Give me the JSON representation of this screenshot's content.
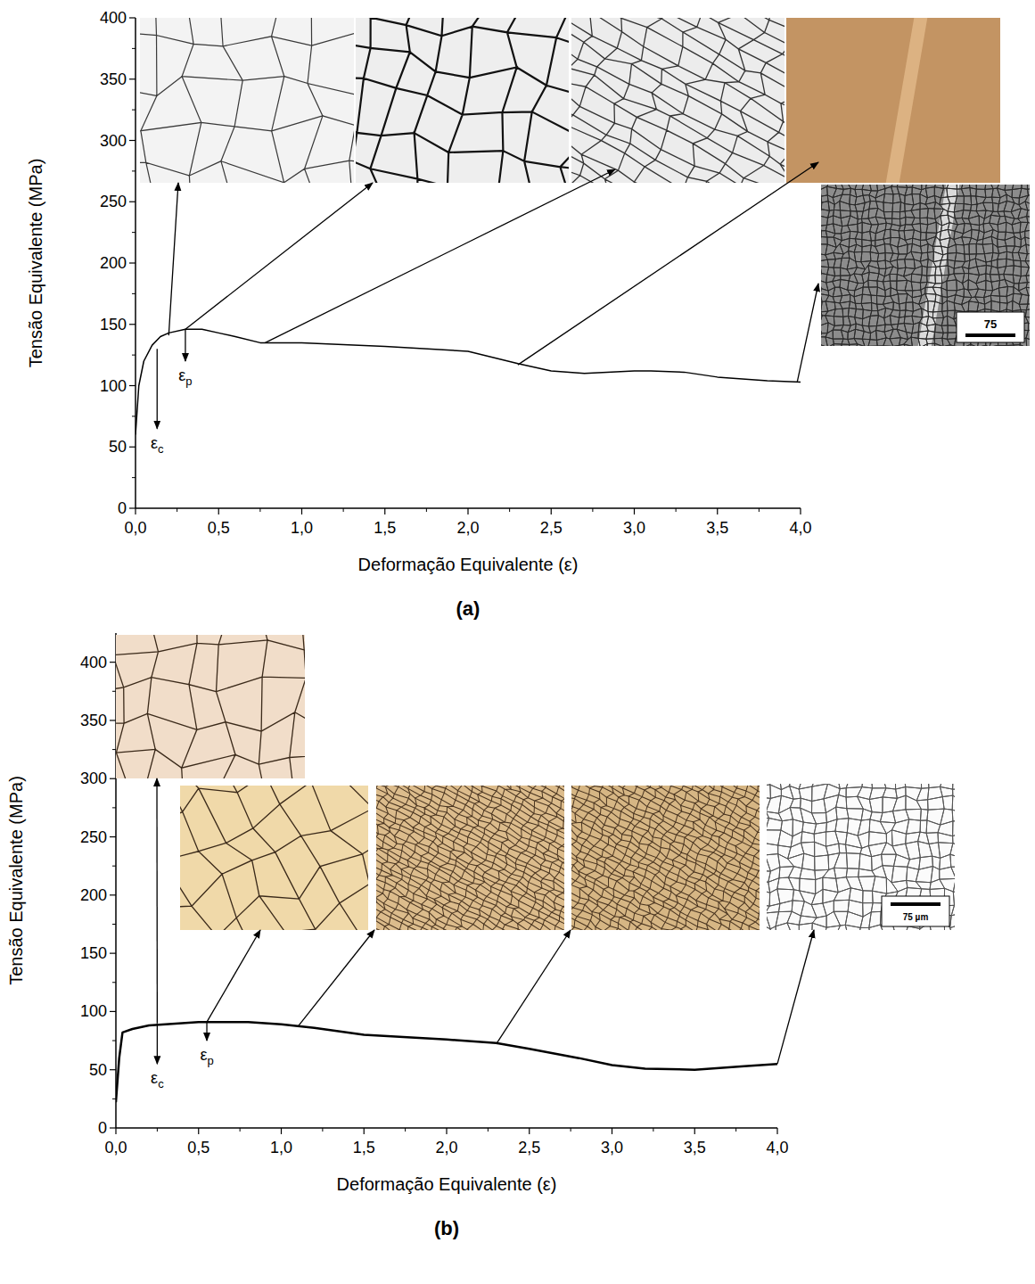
{
  "chart_data": [
    {
      "type": "line",
      "panel": "(a)",
      "x_label": "Deformação Equivalente (ε)",
      "y_label": "Tensão Equivalente (MPa)",
      "xlim": [
        0,
        4
      ],
      "ylim": [
        0,
        400
      ],
      "xticks": [
        {
          "value": 0,
          "label": "0,0"
        },
        {
          "value": 0.5,
          "label": "0,5"
        },
        {
          "value": 1,
          "label": "1,0"
        },
        {
          "value": 1.5,
          "label": "1,5"
        },
        {
          "value": 2,
          "label": "2,0"
        },
        {
          "value": 2.5,
          "label": "2,5"
        },
        {
          "value": 3,
          "label": "3,0"
        },
        {
          "value": 3.5,
          "label": "3,5"
        },
        {
          "value": 4,
          "label": "4,0"
        }
      ],
      "yticks": [
        0,
        50,
        100,
        150,
        200,
        250,
        300,
        350,
        400
      ],
      "color": "#000000",
      "x": [
        0,
        0.02,
        0.05,
        0.1,
        0.15,
        0.2,
        0.3,
        0.4,
        0.5,
        0.6,
        0.75,
        0.9,
        1.0,
        1.5,
        2.0,
        2.3,
        2.5,
        2.7,
        3.0,
        3.1,
        3.3,
        3.5,
        3.8,
        4.0
      ],
      "values": [
        60,
        100,
        120,
        133,
        140,
        143,
        146,
        146,
        143,
        140,
        135,
        135,
        135,
        132,
        128,
        118,
        112,
        110,
        112,
        112,
        111,
        107,
        104,
        103
      ],
      "annotations": [
        {
          "label": "ε",
          "subscript": "c",
          "x": 0.13,
          "y_start": 130,
          "y_end": 65
        },
        {
          "label": "ε",
          "subscript": "p",
          "x": 0.3,
          "y_start": 146,
          "y_end": 120
        }
      ],
      "insets": [
        {
          "x": 0.2,
          "y": 141
        },
        {
          "x": 0.3,
          "y": 146
        },
        {
          "x": 0.78,
          "y": 135
        },
        {
          "x": 2.3,
          "y": 117
        },
        {
          "x": 3.98,
          "y": 103,
          "scale_bar": "75"
        }
      ]
    },
    {
      "type": "line",
      "panel": "(b)",
      "x_label": "Deformação Equivalente (ε)",
      "y_label": "Tensão Equivalente (MPa)",
      "xlim": [
        0,
        4
      ],
      "ylim": [
        0,
        425
      ],
      "xticks": [
        {
          "value": 0,
          "label": "0,0"
        },
        {
          "value": 0.5,
          "label": "0,5"
        },
        {
          "value": 1,
          "label": "1,0"
        },
        {
          "value": 1.5,
          "label": "1,5"
        },
        {
          "value": 2,
          "label": "2,0"
        },
        {
          "value": 2.5,
          "label": "2,5"
        },
        {
          "value": 3,
          "label": "3,0"
        },
        {
          "value": 3.5,
          "label": "3,5"
        },
        {
          "value": 4,
          "label": "4,0"
        }
      ],
      "yticks": [
        0,
        50,
        100,
        150,
        200,
        250,
        300,
        350,
        400
      ],
      "color": "#000000",
      "x": [
        0,
        0.02,
        0.04,
        0.1,
        0.2,
        0.5,
        0.8,
        1.0,
        1.2,
        1.5,
        2.0,
        2.3,
        2.5,
        2.8,
        3.0,
        3.2,
        3.5,
        3.8,
        4.0
      ],
      "values": [
        22,
        60,
        82,
        85,
        88,
        91,
        91,
        89,
        86,
        80,
        76,
        73,
        68,
        60,
        54,
        51,
        50,
        53,
        55
      ],
      "annotations": [
        {
          "label": "ε",
          "subscript": "c",
          "x": 0.25,
          "y_start": 90,
          "y_end": 55
        },
        {
          "label": "ε",
          "subscript": "p",
          "x": 0.55,
          "y_start": 91,
          "y_end": 75
        }
      ],
      "insets": [
        {
          "x": 0.25,
          "y": 90
        },
        {
          "x": 0.55,
          "y": 91
        },
        {
          "x": 1.1,
          "y": 87
        },
        {
          "x": 2.3,
          "y": 72
        },
        {
          "x": 4.0,
          "y": 55,
          "scale_bar": "75 µm"
        }
      ]
    }
  ]
}
